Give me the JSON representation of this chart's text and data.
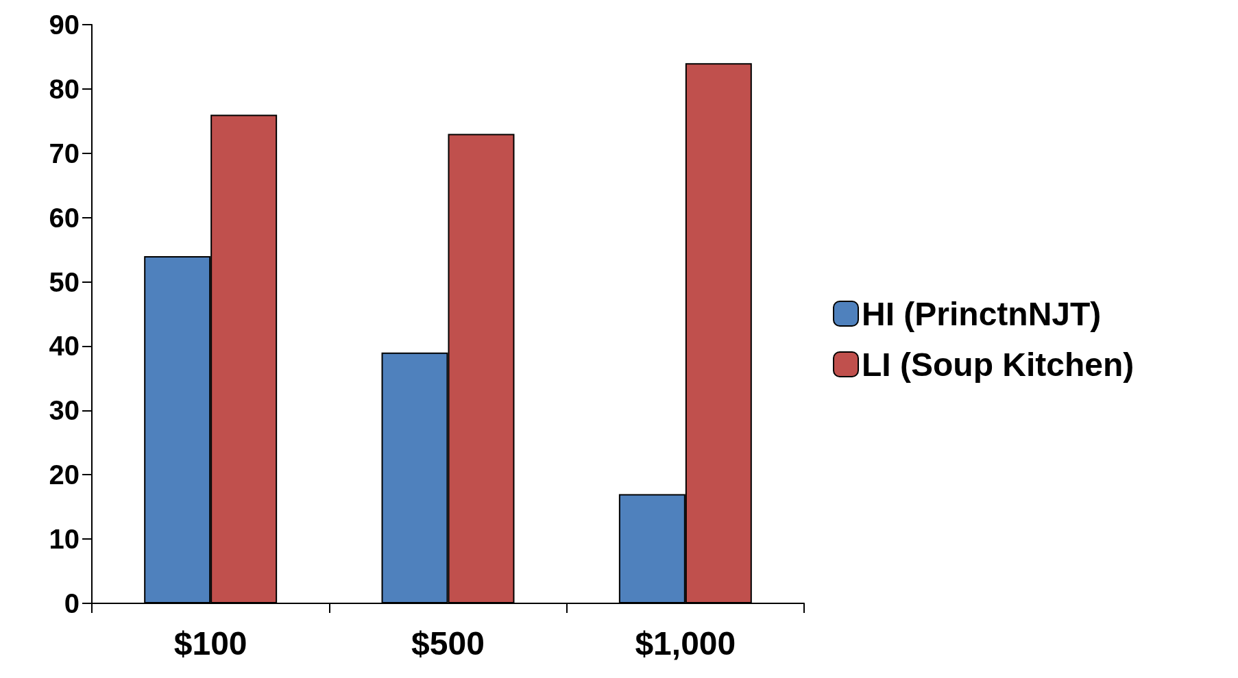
{
  "chart_data": {
    "type": "bar",
    "categories": [
      "$100",
      "$500",
      "$1,000"
    ],
    "series": [
      {
        "name": "HI (PrinctnNJT)",
        "color": "#4f81bd",
        "values": [
          54,
          39,
          17
        ]
      },
      {
        "name": "LI (Soup Kitchen)",
        "color": "#c0504d",
        "values": [
          76,
          73,
          84
        ]
      }
    ],
    "ylim": [
      0,
      90
    ],
    "yticks": [
      0,
      10,
      20,
      30,
      40,
      50,
      60,
      70,
      80,
      90
    ],
    "grid": false,
    "legend": "right"
  }
}
